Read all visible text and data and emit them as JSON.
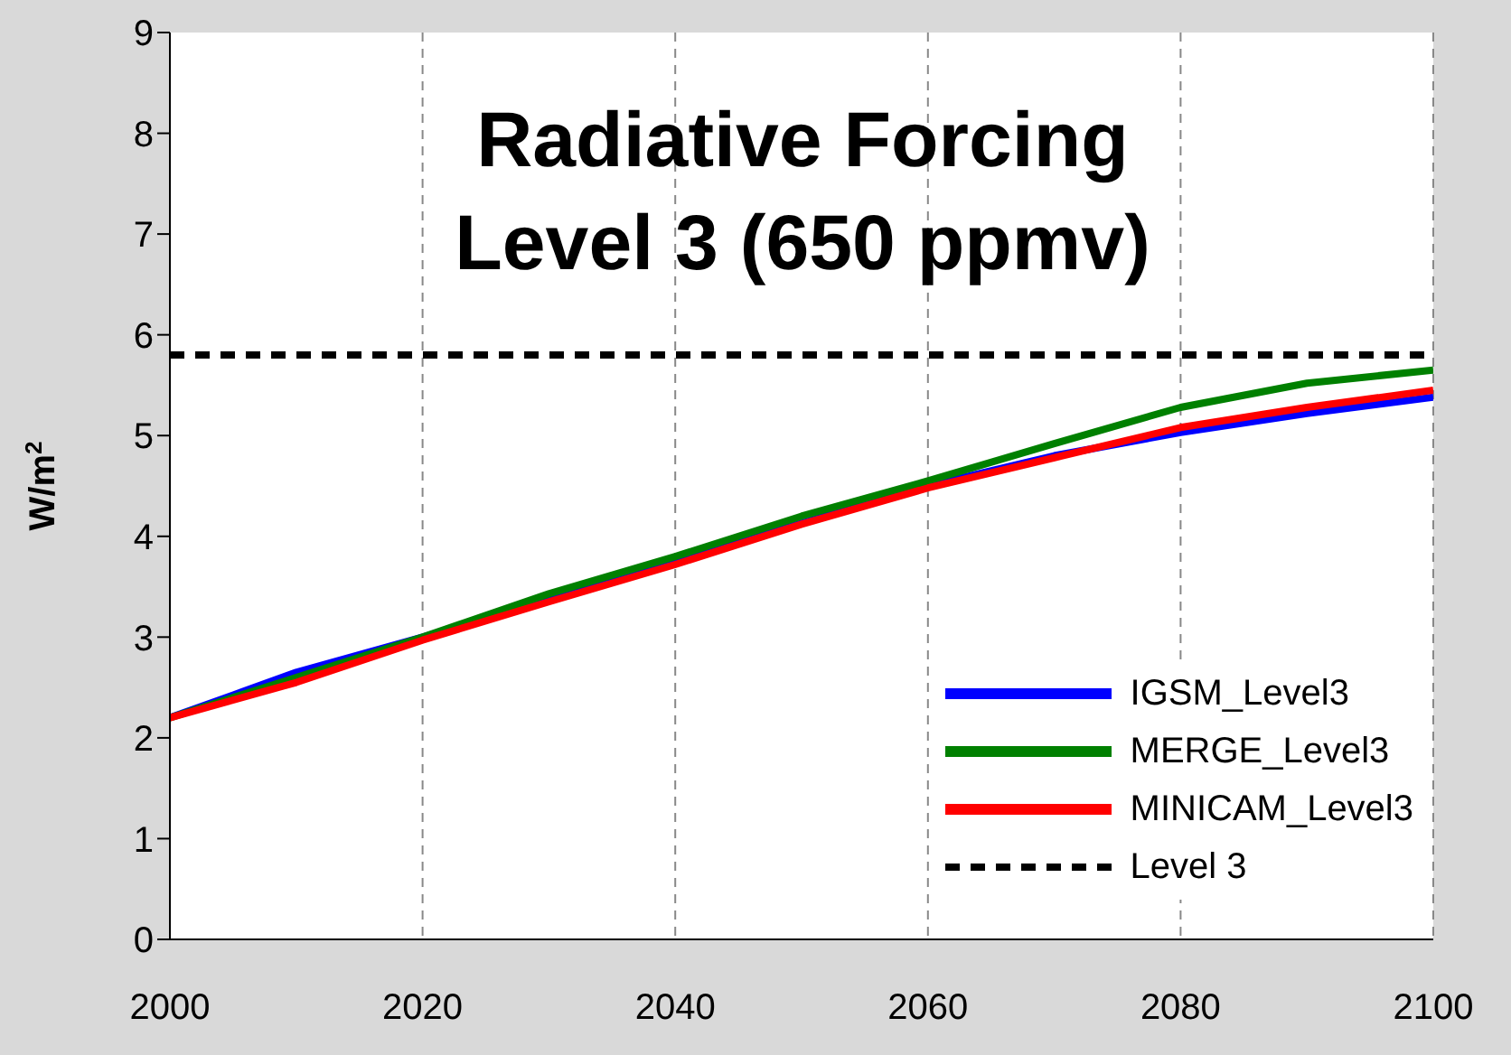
{
  "chart_data": {
    "type": "line",
    "title": "Radiative Forcing\nLevel 3 (650 ppmv)",
    "ylabel": "W/m$^{2}$",
    "x": [
      2000,
      2010,
      2020,
      2030,
      2040,
      2050,
      2060,
      2070,
      2080,
      2090,
      2100
    ],
    "series": [
      {
        "name": "IGSM_Level3",
        "color": "#0000ff",
        "values": [
          2.2,
          2.65,
          3.0,
          3.37,
          3.75,
          4.13,
          4.5,
          4.8,
          5.03,
          5.22,
          5.38
        ]
      },
      {
        "name": "MERGE_Level3",
        "color": "#008000",
        "values": [
          2.2,
          2.6,
          3.0,
          3.43,
          3.8,
          4.2,
          4.55,
          4.92,
          5.28,
          5.52,
          5.65
        ]
      },
      {
        "name": "MINICAM_Level3",
        "color": "#ff0000",
        "values": [
          2.2,
          2.55,
          2.97,
          3.35,
          3.72,
          4.12,
          4.48,
          4.78,
          5.08,
          5.28,
          5.45
        ]
      },
      {
        "name": "Level 3",
        "color": "#000000",
        "line_style": "dashed",
        "values": [
          5.8,
          5.8,
          5.8,
          5.8,
          5.8,
          5.8,
          5.8,
          5.8,
          5.8,
          5.8,
          5.8
        ]
      }
    ],
    "xlim": [
      2000,
      2100
    ],
    "xticks": [
      2000,
      2020,
      2040,
      2060,
      2080,
      2100
    ],
    "ylim": [
      0,
      9
    ],
    "yticks": [
      0,
      1,
      2,
      3,
      4,
      5,
      6,
      7,
      8,
      9
    ],
    "grid": "x",
    "legend": "bottom right",
    "marker": "none"
  }
}
